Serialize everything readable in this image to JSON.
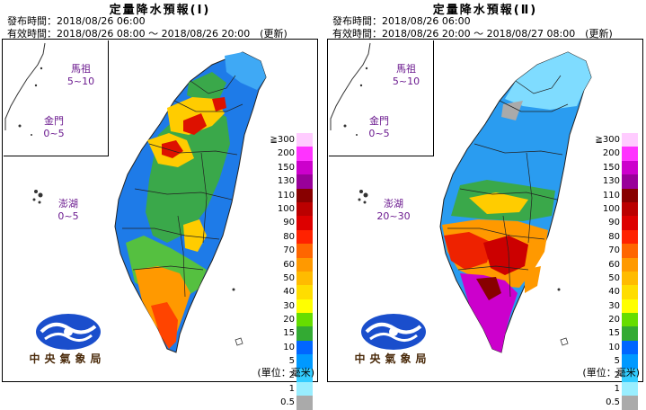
{
  "panels": [
    {
      "title": "定量降水預報(Ⅰ)",
      "issue_line": "發布時間：2018/08/26 06:00",
      "valid_line": "有效時間：2018/08/26 08:00 ～ 2018/08/26 20:00　(更新)",
      "islands": {
        "matsu": {
          "name": "馬祖",
          "range": "5~10"
        },
        "kinmen": {
          "name": "金門",
          "range": "0~5"
        },
        "penghu": {
          "name": "澎湖",
          "range": "0~5"
        }
      }
    },
    {
      "title": "定量降水預報(Ⅱ)",
      "issue_line": "發布時間：2018/08/26 06:00",
      "valid_line": "有效時間：2018/08/26 20:00 ～ 2018/08/27 08:00　(更新)",
      "islands": {
        "matsu": {
          "name": "馬祖",
          "range": "5~10"
        },
        "kinmen": {
          "name": "金門",
          "range": "0~5"
        },
        "penghu": {
          "name": "澎湖",
          "range": "20~30"
        }
      }
    }
  ],
  "legend": {
    "levels": [
      {
        "label": "≧300",
        "color": "#ffccff"
      },
      {
        "label": "200",
        "color": "#ff33ff"
      },
      {
        "label": "150",
        "color": "#cc00cc"
      },
      {
        "label": "130",
        "color": "#990099"
      },
      {
        "label": "110",
        "color": "#880000"
      },
      {
        "label": "100",
        "color": "#bb0000"
      },
      {
        "label": "90",
        "color": "#dd0000"
      },
      {
        "label": "80",
        "color": "#ff2200"
      },
      {
        "label": "70",
        "color": "#ff6600"
      },
      {
        "label": "60",
        "color": "#ff9900"
      },
      {
        "label": "50",
        "color": "#ffbb00"
      },
      {
        "label": "40",
        "color": "#ffdd00"
      },
      {
        "label": "30",
        "color": "#ffff00"
      },
      {
        "label": "20",
        "color": "#66dd00"
      },
      {
        "label": "15",
        "color": "#33aa33"
      },
      {
        "label": "10",
        "color": "#0066ff"
      },
      {
        "label": "5",
        "color": "#0099ff"
      },
      {
        "label": "2",
        "color": "#33ccff"
      },
      {
        "label": "1",
        "color": "#99eeff"
      },
      {
        "label": "0.5",
        "color": "#aaaaaa"
      }
    ],
    "unit": "(單位：毫米)"
  },
  "agency": "中央氣象局"
}
